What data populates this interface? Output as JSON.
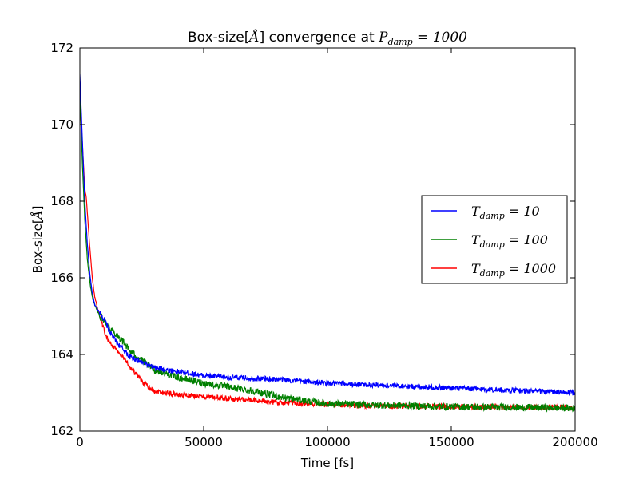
{
  "chart_data": {
    "type": "line",
    "title": {
      "prefix": "Box-size[",
      "unit": "Å",
      "middle": "] convergence at ",
      "var": "P",
      "sub": "damp",
      "eq": " = 1000"
    },
    "xlabel": "Time [fs]",
    "ylabel": {
      "prefix": "Box-size[",
      "unit": "Å",
      "suffix": "]"
    },
    "xlim": [
      0,
      200000
    ],
    "ylim": [
      162,
      172
    ],
    "xticks": [
      0,
      50000,
      100000,
      150000,
      200000
    ],
    "xtick_labels": [
      "0",
      "50000",
      "100000",
      "150000",
      "200000"
    ],
    "yticks": [
      162,
      164,
      166,
      168,
      170,
      172
    ],
    "ytick_labels": [
      "162",
      "164",
      "166",
      "168",
      "170",
      "172"
    ],
    "grid": false,
    "legend_position": "center-right",
    "series": [
      {
        "label_var": "T",
        "label_sub": "damp",
        "label_eq": " = 10",
        "color": "#0000ff",
        "x": [
          0,
          1000,
          2000,
          3000,
          4000,
          5000,
          6000,
          8000,
          10000,
          12000,
          15000,
          18000,
          20000,
          25000,
          30000,
          40000,
          50000,
          60000,
          70000,
          80000,
          90000,
          100000,
          120000,
          140000,
          160000,
          180000,
          200000
        ],
        "y": [
          171.3,
          169.6,
          168.0,
          166.9,
          166.1,
          165.6,
          165.3,
          165.1,
          164.9,
          164.6,
          164.3,
          164.1,
          163.95,
          163.8,
          163.65,
          163.55,
          163.45,
          163.4,
          163.38,
          163.35,
          163.3,
          163.25,
          163.2,
          163.15,
          163.1,
          163.05,
          163.0
        ],
        "noise": 0.07
      },
      {
        "label_var": "T",
        "label_sub": "damp",
        "label_eq": " = 100",
        "color": "#008000",
        "x": [
          0,
          1000,
          2000,
          3000,
          4000,
          5000,
          6000,
          8000,
          10000,
          12000,
          15000,
          18000,
          20000,
          25000,
          30000,
          40000,
          50000,
          60000,
          70000,
          80000,
          90000,
          100000,
          120000,
          140000,
          160000,
          180000,
          200000
        ],
        "y": [
          170.9,
          169.0,
          167.5,
          166.5,
          165.9,
          165.5,
          165.3,
          165.0,
          164.9,
          164.7,
          164.5,
          164.3,
          164.1,
          163.85,
          163.6,
          163.4,
          163.25,
          163.15,
          163.05,
          162.9,
          162.8,
          162.72,
          162.68,
          162.65,
          162.63,
          162.62,
          162.6
        ],
        "noise": 0.09
      },
      {
        "label_var": "T",
        "label_sub": "damp",
        "label_eq": " = 1000",
        "color": "#ff0000",
        "x": [
          0,
          1000,
          2000,
          2500,
          3000,
          4000,
          5000,
          6000,
          8000,
          10000,
          12000,
          15000,
          18000,
          20000,
          25000,
          30000,
          40000,
          50000,
          60000,
          70000,
          80000,
          90000,
          100000,
          120000,
          140000,
          160000,
          180000,
          200000
        ],
        "y": [
          170.6,
          169.5,
          168.3,
          168.15,
          167.7,
          166.8,
          166.0,
          165.5,
          165.0,
          164.6,
          164.3,
          164.1,
          163.9,
          163.7,
          163.3,
          163.05,
          162.95,
          162.9,
          162.85,
          162.8,
          162.75,
          162.72,
          162.7,
          162.65,
          162.65,
          162.63,
          162.62,
          162.62
        ],
        "noise": 0.07
      }
    ]
  }
}
